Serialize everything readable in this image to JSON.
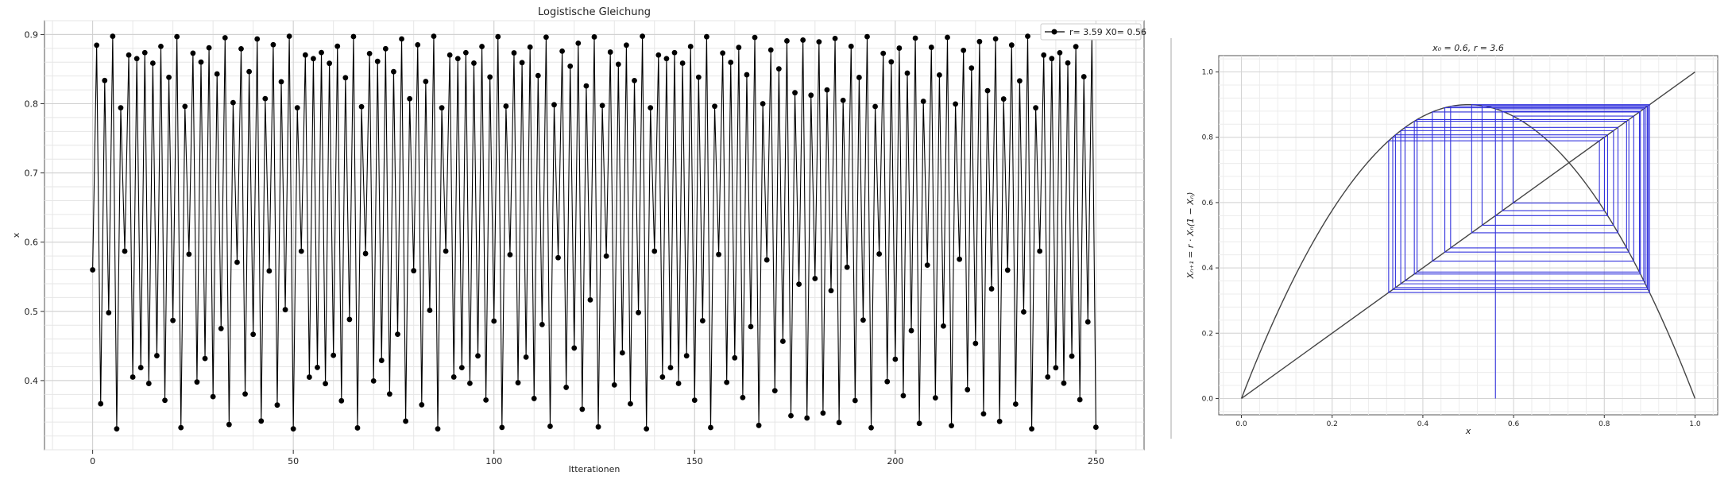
{
  "chart_data": [
    {
      "type": "line",
      "title": "Logistische Gleichung",
      "xlabel": "Itterationen",
      "ylabel": "x",
      "xlim": [
        -12,
        262
      ],
      "ylim": [
        0.3,
        0.92
      ],
      "xticks": [
        "0",
        "50",
        "100",
        "150",
        "200",
        "250"
      ],
      "yticks": [
        "0.4",
        "0.5",
        "0.6",
        "0.7",
        "0.8",
        "0.9"
      ],
      "grid": true,
      "legend_position": "top-right",
      "series": [
        {
          "name": "r= 3.59 X0= 0.56",
          "color": "#000000",
          "marker": "circle",
          "generator": {
            "model": "logistic",
            "r": 3.59,
            "x0": 0.56,
            "iterations": 250
          },
          "values_preview": [
            0.56,
            0.885,
            0.366,
            0.833,
            0.499,
            0.898,
            0.33,
            0.794,
            0.587,
            0.87
          ]
        }
      ]
    },
    {
      "type": "line",
      "title": "x₀ = 0.6, r = 3.6",
      "xlabel": "x",
      "ylabel": "Xₙ₊₁ = r · Xₙ(1 − Xₙ)",
      "xlim": [
        -0.05,
        1.05
      ],
      "ylim": [
        -0.05,
        1.05
      ],
      "xticks": [
        "0.0",
        "0.2",
        "0.4",
        "0.6",
        "0.8",
        "1.0"
      ],
      "yticks": [
        "0.0",
        "0.2",
        "0.4",
        "0.6",
        "0.8",
        "1.0"
      ],
      "grid": true,
      "series": [
        {
          "kind": "parabola",
          "r": 3.6,
          "color": "#444444"
        },
        {
          "kind": "identity",
          "color": "#444444"
        },
        {
          "kind": "cobweb",
          "r": 3.6,
          "x0": 0.56,
          "steps": 30,
          "color": "#3333dd"
        }
      ]
    }
  ]
}
